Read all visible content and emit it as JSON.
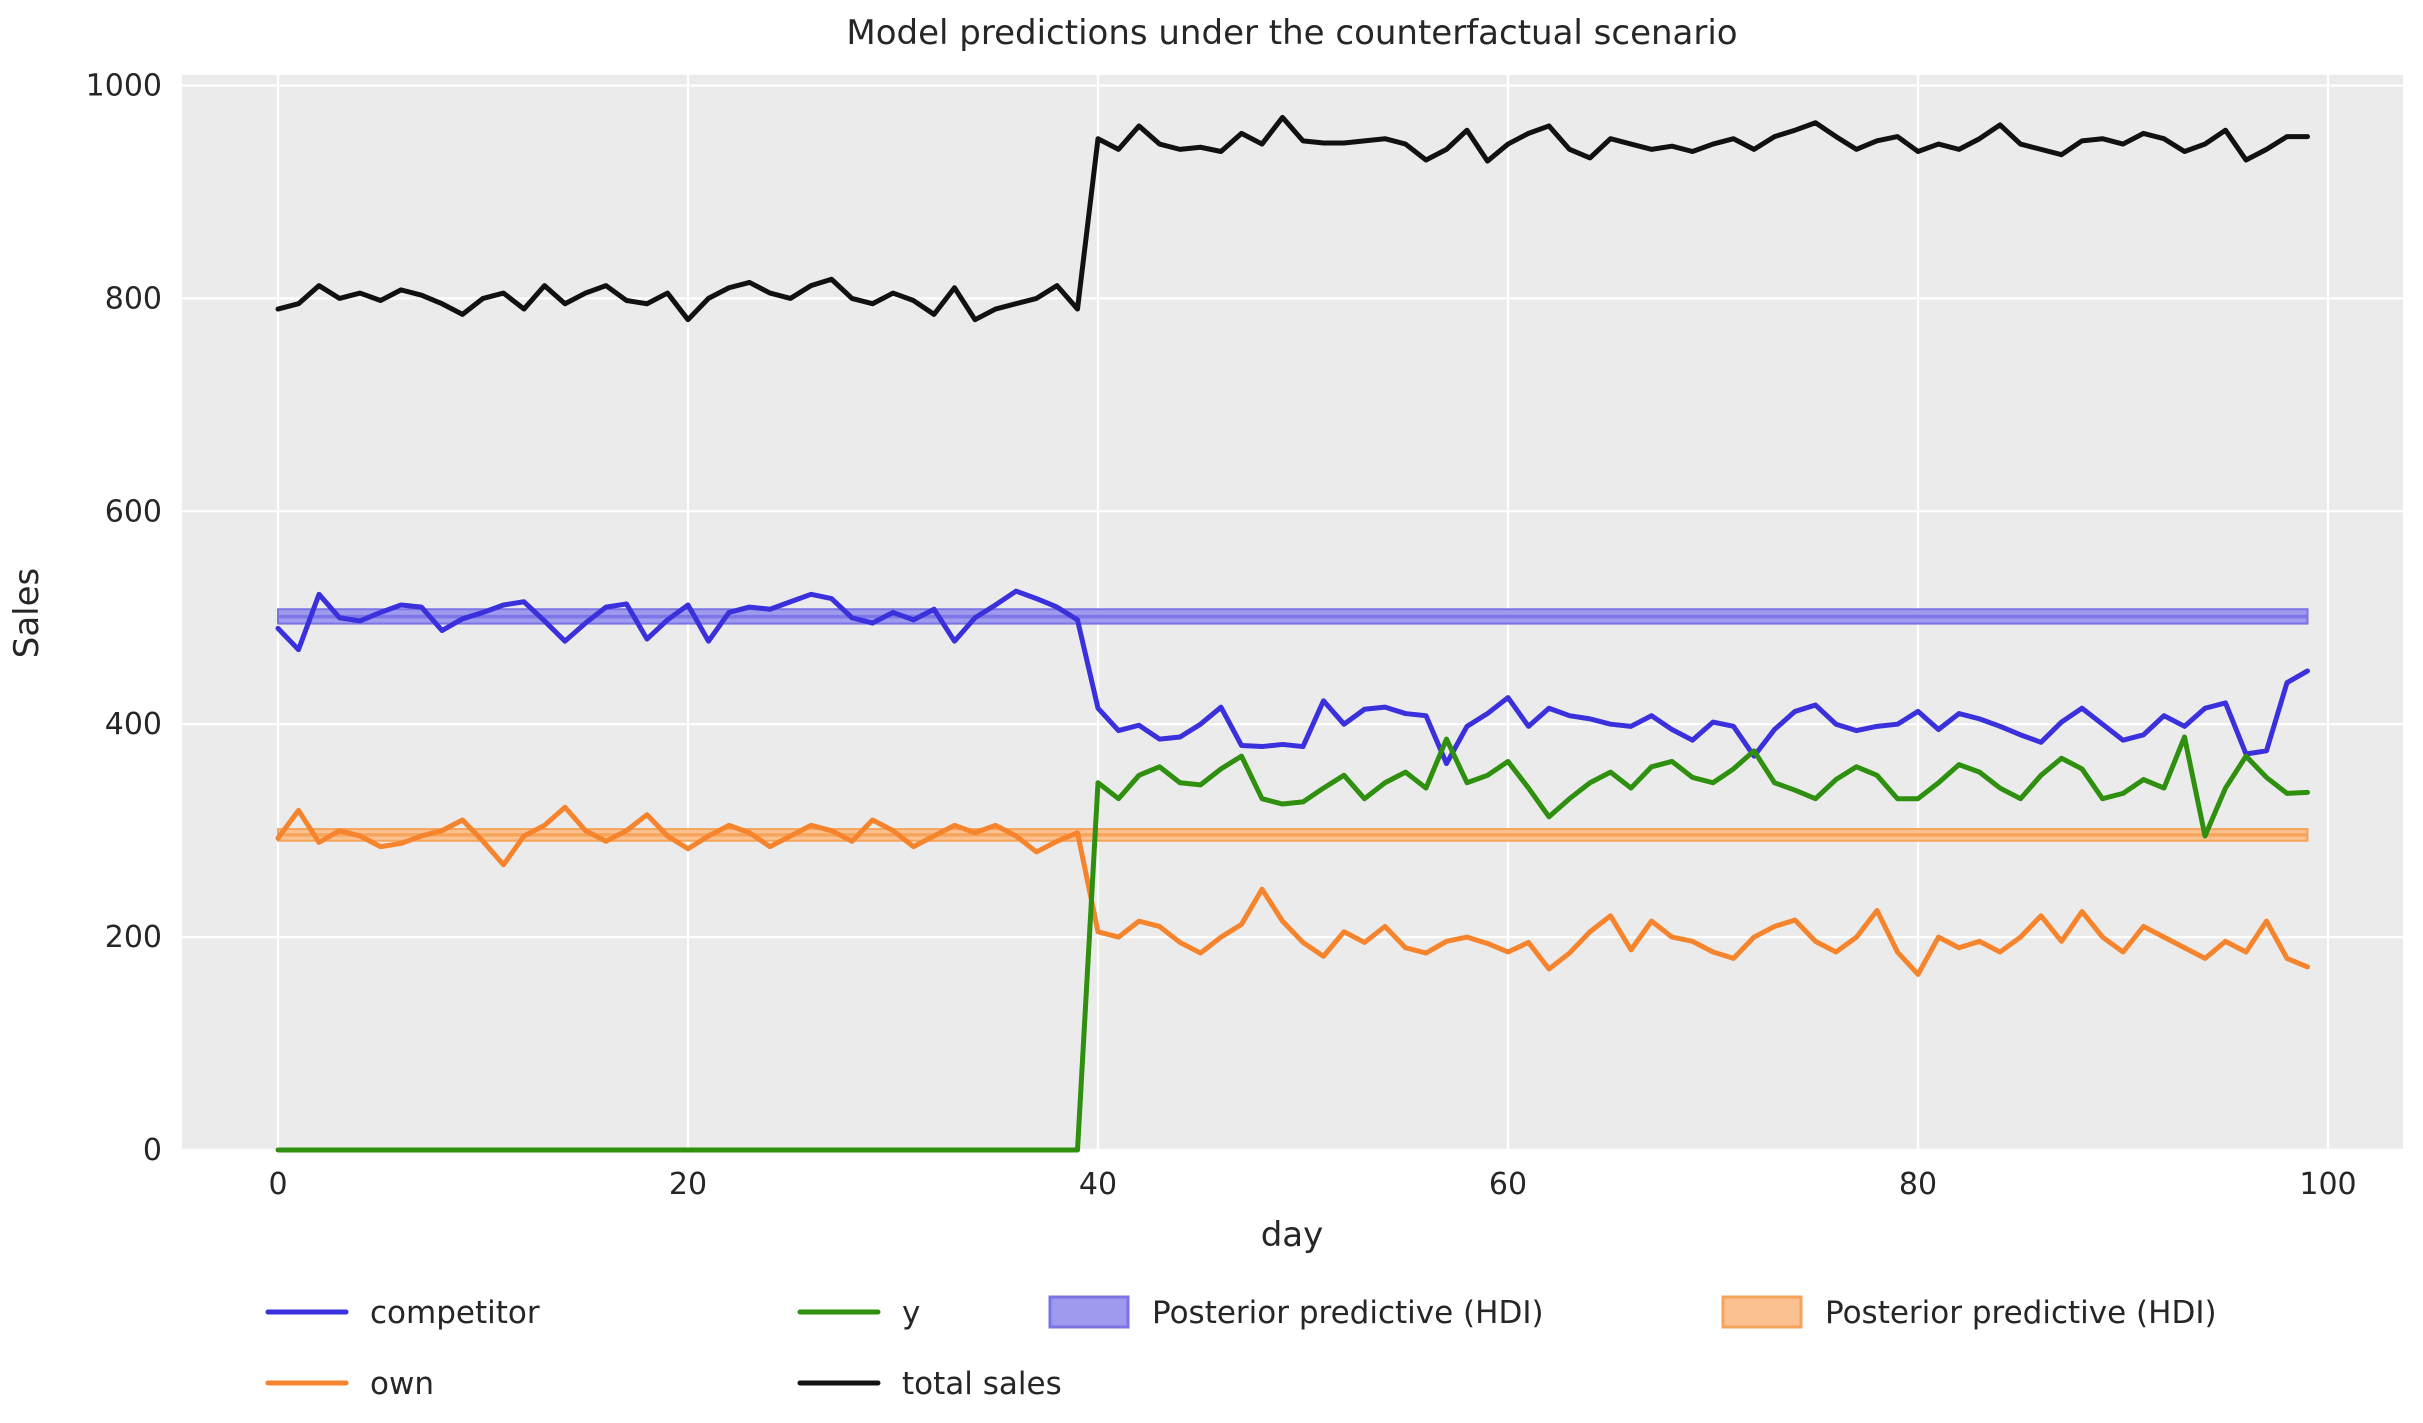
{
  "title": "Model predictions under the counterfactual scenario",
  "axes": {
    "xlabel": "day",
    "ylabel": "Sales",
    "x_ticks": [
      0,
      20,
      40,
      60,
      80,
      100
    ],
    "y_ticks": [
      0,
      200,
      400,
      600,
      800,
      1000
    ]
  },
  "colors": {
    "competitor": "#3a30dc",
    "own": "#f5842d",
    "y": "#2f8f0e",
    "total_sales": "#111111",
    "hdi_blue_fill": "#9e9aed",
    "hdi_blue_border": "#7b74e4",
    "hdi_blue_mean": "#7d76e6",
    "hdi_orange_fill": "#fbc190",
    "hdi_orange_border": "#f5a45a",
    "hdi_orange_mean": "#f6a55c",
    "plot_background": "#ebebeb",
    "gridline": "#ffffff",
    "text": "#262626"
  },
  "legend": {
    "line_items": [
      {
        "label": "competitor",
        "color_key": "competitor"
      },
      {
        "label": "own",
        "color_key": "own"
      },
      {
        "label": "y",
        "color_key": "y"
      },
      {
        "label": "total sales",
        "color_key": "total_sales"
      }
    ],
    "patch_items": [
      {
        "label": "Posterior predictive (HDI)",
        "fill_key": "hdi_blue_fill",
        "border_key": "hdi_blue_border"
      },
      {
        "label": "Posterior predictive (HDI)",
        "fill_key": "hdi_orange_fill",
        "border_key": "hdi_orange_border"
      }
    ]
  },
  "chart_data": {
    "type": "line",
    "title": "Model predictions under the counterfactual scenario",
    "xlabel": "day",
    "ylabel": "Sales",
    "xlim": [
      -5,
      104
    ],
    "ylim": [
      0,
      1010
    ],
    "grid": true,
    "legend_position": "bottom",
    "intervention_day": 40,
    "x": [
      0,
      1,
      2,
      3,
      4,
      5,
      6,
      7,
      8,
      9,
      10,
      11,
      12,
      13,
      14,
      15,
      16,
      17,
      18,
      19,
      20,
      21,
      22,
      23,
      24,
      25,
      26,
      27,
      28,
      29,
      30,
      31,
      32,
      33,
      34,
      35,
      36,
      37,
      38,
      39,
      40,
      41,
      42,
      43,
      44,
      45,
      46,
      47,
      48,
      49,
      50,
      51,
      52,
      53,
      54,
      55,
      56,
      57,
      58,
      59,
      60,
      61,
      62,
      63,
      64,
      65,
      66,
      67,
      68,
      69,
      70,
      71,
      72,
      73,
      74,
      75,
      76,
      77,
      78,
      79,
      80,
      81,
      82,
      83,
      84,
      85,
      86,
      87,
      88,
      89,
      90,
      91,
      92,
      93,
      94,
      95,
      96,
      97,
      98,
      99
    ],
    "series": [
      {
        "name": "competitor",
        "color_key": "competitor",
        "values": [
          490,
          470,
          522,
          500,
          497,
          505,
          512,
          510,
          488,
          499,
          505,
          512,
          515,
          497,
          478,
          495,
          510,
          513,
          480,
          498,
          512,
          478,
          505,
          510,
          508,
          515,
          522,
          518,
          500,
          495,
          505,
          498,
          508,
          478,
          500,
          512,
          525,
          518,
          510,
          498,
          415,
          394,
          399,
          386,
          388,
          400,
          416,
          380,
          379,
          381,
          379,
          422,
          400,
          414,
          416,
          410,
          408,
          363,
          398,
          410,
          425,
          398,
          415,
          408,
          405,
          400,
          398,
          408,
          395,
          385,
          402,
          398,
          370,
          395,
          412,
          418,
          400,
          394,
          398,
          400,
          412,
          395,
          410,
          405,
          398,
          390,
          383,
          402,
          415,
          400,
          385,
          390,
          408,
          398,
          415,
          420,
          372,
          375,
          439,
          450
        ]
      },
      {
        "name": "own",
        "color_key": "own",
        "values": [
          293,
          319,
          289,
          300,
          295,
          285,
          288,
          295,
          300,
          310,
          290,
          268,
          295,
          305,
          322,
          300,
          290,
          300,
          315,
          295,
          283,
          295,
          305,
          298,
          285,
          295,
          305,
          300,
          290,
          310,
          300,
          285,
          295,
          305,
          298,
          305,
          295,
          280,
          290,
          298,
          205,
          200,
          215,
          210,
          195,
          185,
          200,
          212,
          245,
          215,
          195,
          182,
          205,
          195,
          210,
          190,
          185,
          196,
          200,
          194,
          186,
          195,
          170,
          185,
          205,
          220,
          188,
          215,
          200,
          196,
          186,
          180,
          200,
          210,
          216,
          196,
          186,
          200,
          225,
          186,
          165,
          200,
          190,
          196,
          186,
          200,
          220,
          196,
          224,
          200,
          186,
          210,
          200,
          190,
          180,
          196,
          186,
          215,
          180,
          172
        ]
      },
      {
        "name": "y",
        "color_key": "y",
        "values": [
          0,
          0,
          0,
          0,
          0,
          0,
          0,
          0,
          0,
          0,
          0,
          0,
          0,
          0,
          0,
          0,
          0,
          0,
          0,
          0,
          0,
          0,
          0,
          0,
          0,
          0,
          0,
          0,
          0,
          0,
          0,
          0,
          0,
          0,
          0,
          0,
          0,
          0,
          0,
          0,
          345,
          330,
          352,
          360,
          345,
          343,
          358,
          370,
          330,
          325,
          327,
          340,
          352,
          330,
          345,
          355,
          340,
          386,
          345,
          352,
          365,
          340,
          313,
          330,
          345,
          355,
          340,
          360,
          365,
          350,
          345,
          358,
          375,
          345,
          338,
          330,
          348,
          360,
          352,
          330,
          330,
          345,
          362,
          355,
          340,
          330,
          352,
          368,
          358,
          330,
          335,
          348,
          340,
          388,
          295,
          340,
          370,
          350,
          335,
          336
        ]
      },
      {
        "name": "total sales",
        "color_key": "total_sales",
        "values": [
          790,
          795,
          812,
          800,
          805,
          798,
          808,
          803,
          795,
          785,
          800,
          805,
          790,
          812,
          795,
          805,
          812,
          798,
          795,
          805,
          780,
          800,
          810,
          815,
          805,
          800,
          812,
          818,
          800,
          795,
          805,
          798,
          785,
          810,
          780,
          790,
          795,
          800,
          812,
          790,
          950,
          940,
          962,
          945,
          940,
          942,
          938,
          955,
          945,
          970,
          948,
          946,
          946,
          948,
          950,
          945,
          930,
          940,
          958,
          929,
          945,
          955,
          962,
          940,
          932,
          950,
          945,
          940,
          943,
          938,
          945,
          950,
          940,
          952,
          958,
          965,
          952,
          940,
          948,
          952,
          938,
          945,
          940,
          950,
          963,
          945,
          940,
          935,
          948,
          950,
          945,
          955,
          950,
          938,
          945,
          958,
          930,
          940,
          952,
          952
        ]
      }
    ],
    "bands": [
      {
        "name": "Posterior predictive (HDI)",
        "series": "competitor",
        "x_start": 0,
        "x_end": 99,
        "lower": 494.5,
        "upper": 508,
        "mean": 501,
        "fill_key": "hdi_blue_fill",
        "border_key": "hdi_blue_border",
        "mean_key": "hdi_blue_mean"
      },
      {
        "name": "Posterior predictive (HDI)",
        "series": "own",
        "x_start": 0,
        "x_end": 99,
        "lower": 290.5,
        "upper": 301.5,
        "mean": 296,
        "fill_key": "hdi_orange_fill",
        "border_key": "hdi_orange_border",
        "mean_key": "hdi_orange_mean"
      }
    ]
  }
}
